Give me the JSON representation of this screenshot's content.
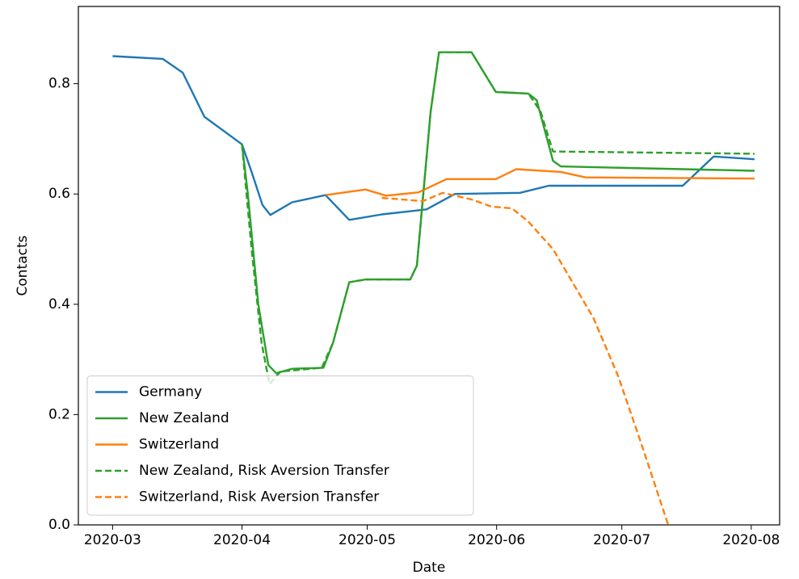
{
  "chart_data": {
    "type": "line",
    "xlabel": "Date",
    "ylabel": "Contacts",
    "xlim": [
      52.8,
      220.8
    ],
    "xticks": [
      {
        "value": 61,
        "label": "2020-03"
      },
      {
        "value": 92,
        "label": "2020-04"
      },
      {
        "value": 122,
        "label": "2020-05"
      },
      {
        "value": 153,
        "label": "2020-06"
      },
      {
        "value": 183,
        "label": "2020-07"
      },
      {
        "value": 214,
        "label": "2020-08"
      }
    ],
    "ylim": [
      0,
      0.94
    ],
    "yticks": [
      {
        "value": 0,
        "label": "0.0"
      },
      0.2,
      0.4,
      0.6,
      0.8
    ],
    "legend": "lower left",
    "series": [
      {
        "name": "Germany",
        "color": "#1f77b4",
        "dash": false,
        "x": [
          61,
          73,
          77.8,
          83,
          92,
          94.3,
          96.9,
          98.8,
          104,
          112,
          117.7,
          125.5,
          136.2,
          143,
          158.6,
          165.5,
          197.6,
          205,
          214.8
        ],
        "values": [
          0.85,
          0.845,
          0.82,
          0.74,
          0.69,
          0.64,
          0.58,
          0.562,
          0.585,
          0.598,
          0.553,
          0.563,
          0.572,
          0.6,
          0.602,
          0.615,
          0.615,
          0.668,
          0.663
        ]
      },
      {
        "name": "New Zealand",
        "color": "#2ca02c",
        "dash": false,
        "x": [
          92,
          93.4,
          95.9,
          98.3,
          100.2,
          104,
          111.5,
          113.8,
          117.7,
          121.6,
          132.3,
          133.9,
          137.2,
          139.2,
          147,
          152.8,
          160.6,
          162.6,
          166.5,
          168.4,
          214.8
        ],
        "values": [
          0.69,
          0.6,
          0.4,
          0.29,
          0.275,
          0.283,
          0.285,
          0.33,
          0.44,
          0.445,
          0.445,
          0.47,
          0.75,
          0.857,
          0.857,
          0.785,
          0.782,
          0.77,
          0.66,
          0.65,
          0.642
        ]
      },
      {
        "name": "Switzerland",
        "color": "#ff7f0e",
        "dash": false,
        "x": [
          112,
          121.6,
          126.5,
          134.3,
          141,
          152.8,
          157.7,
          168.4,
          174.3,
          214.8
        ],
        "values": [
          0.598,
          0.608,
          0.597,
          0.603,
          0.627,
          0.627,
          0.645,
          0.64,
          0.63,
          0.628
        ]
      },
      {
        "name": "New Zealand, Risk Aversion Transfer",
        "color": "#2ca02c",
        "dash": true,
        "x": [
          92,
          94.3,
          96.7,
          98.6,
          101.2,
          111.1,
          113.8,
          117.7,
          121.6,
          132.3,
          133.9,
          137.2,
          139.2,
          147,
          152.8,
          160.6,
          163.5,
          166.5,
          214.8
        ],
        "values": [
          0.69,
          0.5,
          0.33,
          0.255,
          0.278,
          0.285,
          0.33,
          0.44,
          0.445,
          0.445,
          0.47,
          0.75,
          0.857,
          0.857,
          0.785,
          0.782,
          0.75,
          0.677,
          0.673
        ]
      },
      {
        "name": "Switzerland, Risk Aversion Transfer",
        "color": "#ff7f0e",
        "dash": true,
        "x": [
          125.5,
          135.3,
          140.1,
          147,
          151.8,
          156.7,
          160.6,
          166.5,
          170.4,
          176.2,
          182.1,
          188,
          194.1
        ],
        "values": [
          0.593,
          0.587,
          0.602,
          0.59,
          0.577,
          0.574,
          0.55,
          0.5,
          0.45,
          0.375,
          0.27,
          0.14,
          0
        ]
      }
    ]
  }
}
